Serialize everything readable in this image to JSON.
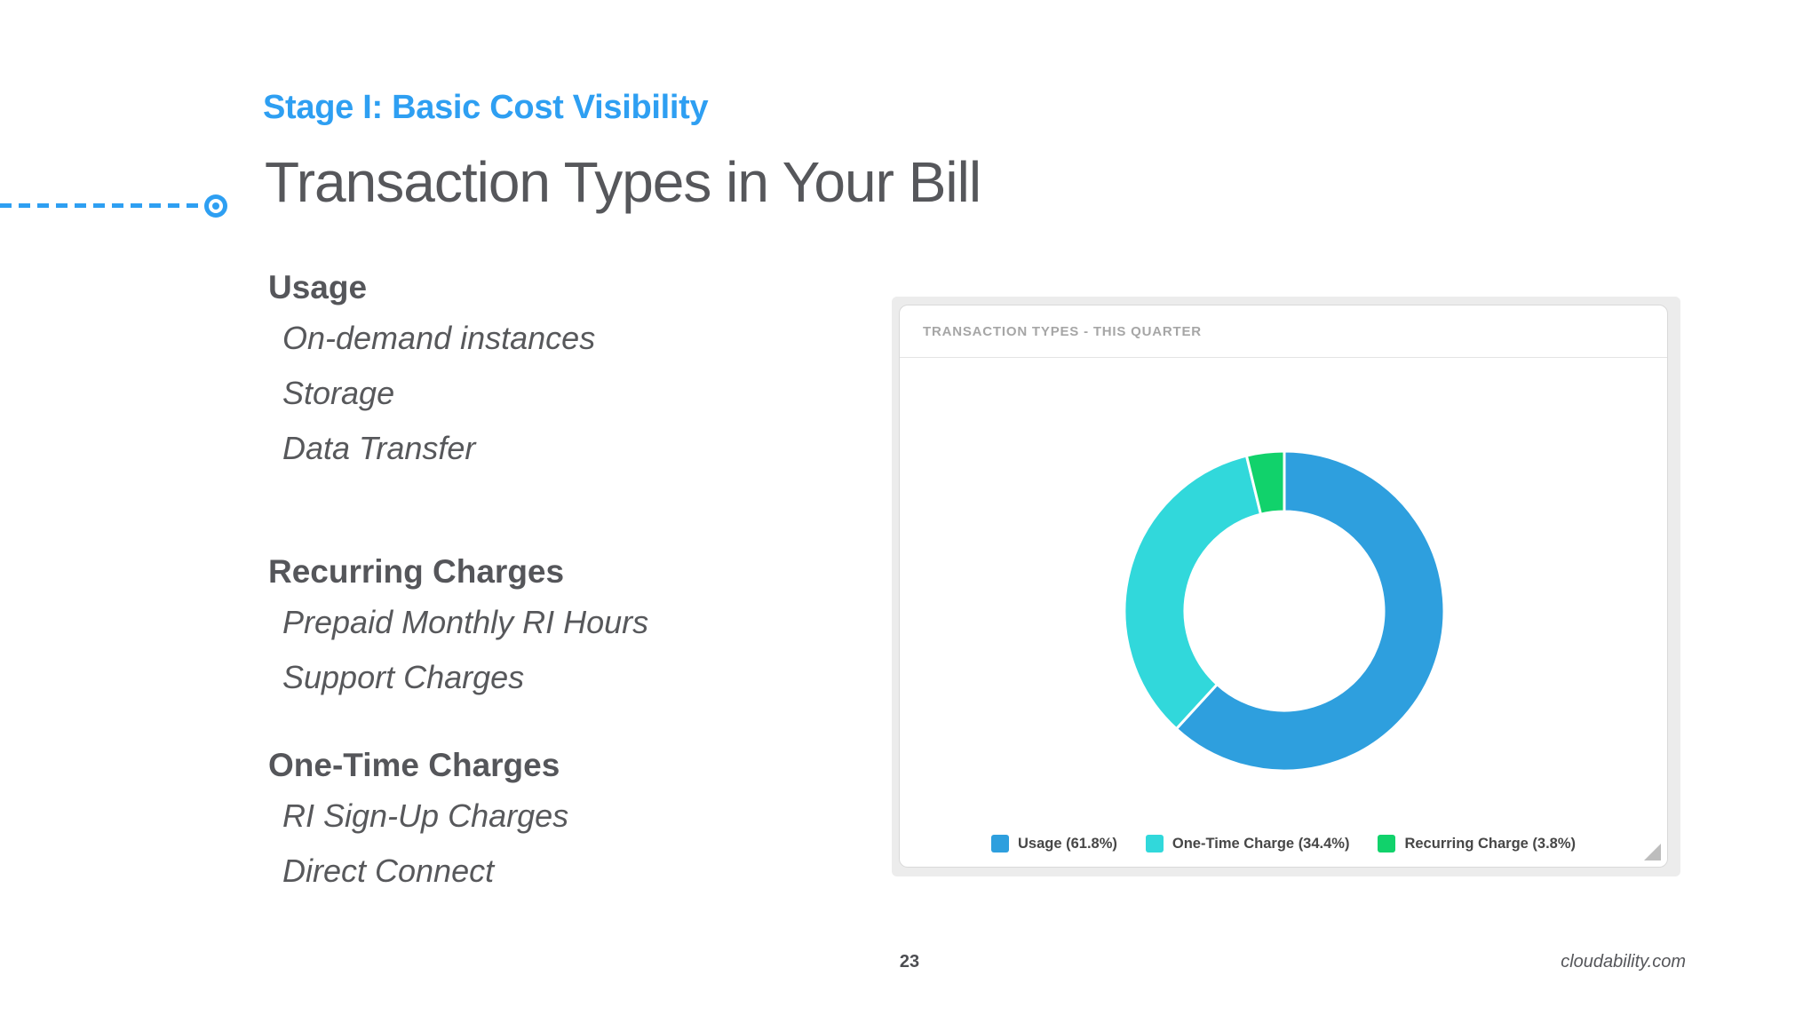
{
  "slide": {
    "eyebrow": "Stage I: Basic Cost Visibility",
    "title": "Transaction Types in Your Bill",
    "sections": [
      {
        "heading": "Usage",
        "items": [
          "On-demand instances",
          "Storage",
          "Data Transfer"
        ]
      },
      {
        "heading": "Recurring Charges",
        "items": [
          "Prepaid Monthly RI Hours",
          "Support Charges"
        ]
      },
      {
        "heading": "One-Time Charges",
        "items": [
          "RI Sign-Up Charges",
          "Direct Connect"
        ]
      }
    ],
    "page_number": "23",
    "footer_link": "cloudability.com"
  },
  "panel": {
    "header": "TRANSACTION TYPES - THIS QUARTER"
  },
  "chart_data": {
    "type": "pie",
    "subtype": "donut",
    "title": "TRANSACTION TYPES - THIS QUARTER",
    "labels": [
      "Usage",
      "One-Time Charge",
      "Recurring Charge"
    ],
    "values": [
      61.8,
      34.4,
      3.8
    ],
    "unit": "%",
    "colors": [
      "#2e9fde",
      "#31d8db",
      "#11d26b"
    ],
    "legend": [
      "Usage (61.8%)",
      "One-Time Charge (34.4%)",
      "Recurring Charge (3.8%)"
    ],
    "legend_position": "bottom",
    "start_angle_deg": 0,
    "direction": "clockwise",
    "inner_radius_ratio": 0.62,
    "separator_color": "#ffffff"
  },
  "theme": {
    "accent_blue": "#2e9ff2",
    "text_gray": "#56575b",
    "panel_background": "#ececec",
    "card_border": "#d9d9d9",
    "card_header_text": "#a6a6a6",
    "legend_text": "#474747"
  }
}
